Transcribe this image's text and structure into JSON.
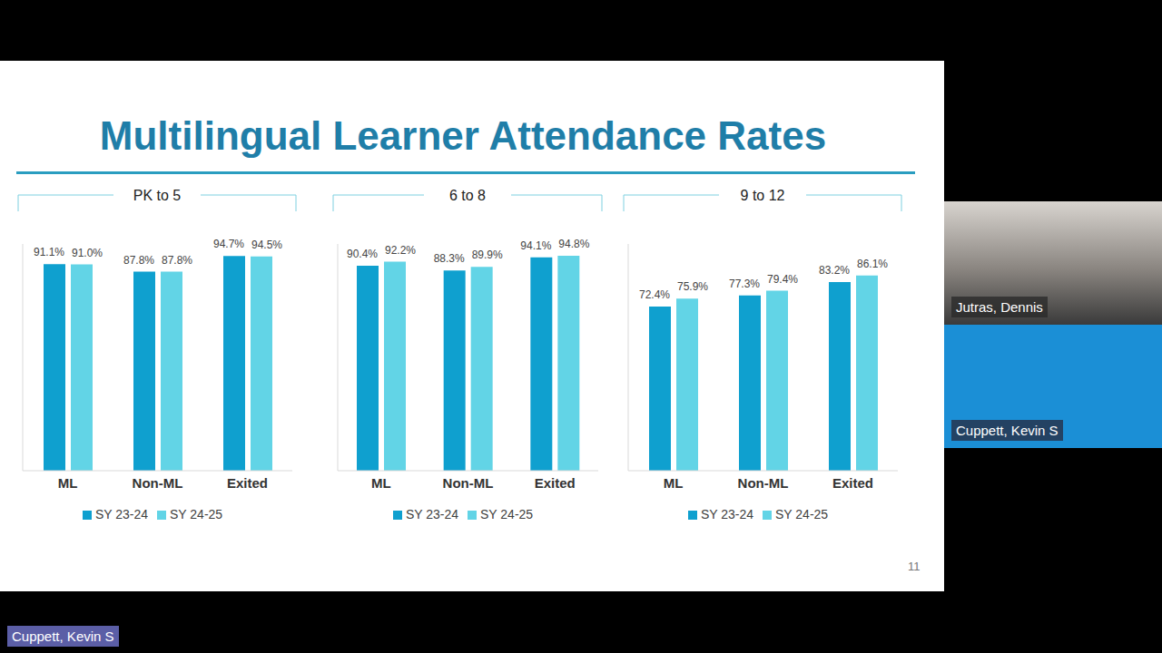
{
  "title": "Multilingual Learner Attendance Rates",
  "page_number": 11,
  "participants": [
    "Jutras, Dennis",
    "Cuppett, Kevin S"
  ],
  "active_speaker": "Cuppett, Kevin S",
  "chart_data": [
    {
      "type": "bar",
      "title": "PK to 5",
      "categories": [
        "ML",
        "Non-ML",
        "Exited"
      ],
      "series": [
        {
          "name": "SY 23-24",
          "color": "#0fa0cf",
          "values": [
            91.1,
            87.8,
            94.7
          ],
          "value_labels": [
            "91.1%",
            "87.8%",
            "94.7%"
          ]
        },
        {
          "name": "SY 24-25",
          "color": "#62d4e6",
          "values": [
            91.0,
            87.8,
            94.5
          ],
          "value_labels": [
            "91.0%",
            "87.8%",
            "94.5%"
          ]
        }
      ],
      "ylim": [
        0,
        100
      ],
      "tick_labels": "x",
      "data_labels": true,
      "legend": "bottom"
    },
    {
      "type": "bar",
      "title": "6 to 8",
      "categories": [
        "ML",
        "Non-ML",
        "Exited"
      ],
      "series": [
        {
          "name": "SY 23-24",
          "color": "#0fa0cf",
          "values": [
            90.4,
            88.3,
            94.1
          ],
          "value_labels": [
            "90.4%",
            "88.3%",
            "94.1%"
          ]
        },
        {
          "name": "SY 24-25",
          "color": "#62d4e6",
          "values": [
            92.2,
            89.9,
            94.8
          ],
          "value_labels": [
            "92.2%",
            "89.9%",
            "94.8%"
          ]
        }
      ],
      "ylim": [
        0,
        100
      ],
      "tick_labels": "x",
      "data_labels": true,
      "legend": "bottom"
    },
    {
      "type": "bar",
      "title": "9 to 12",
      "categories": [
        "ML",
        "Non-ML",
        "Exited"
      ],
      "series": [
        {
          "name": "SY 23-24",
          "color": "#0fa0cf",
          "values": [
            72.4,
            77.3,
            83.2
          ],
          "value_labels": [
            "72.4%",
            "77.3%",
            "83.2%"
          ]
        },
        {
          "name": "SY 24-25",
          "color": "#62d4e6",
          "values": [
            75.9,
            79.4,
            86.1
          ],
          "value_labels": [
            "75.9%",
            "79.4%",
            "86.1%"
          ]
        }
      ],
      "ylim": [
        0,
        100
      ],
      "tick_labels": "x",
      "data_labels": true,
      "legend": "bottom"
    }
  ]
}
